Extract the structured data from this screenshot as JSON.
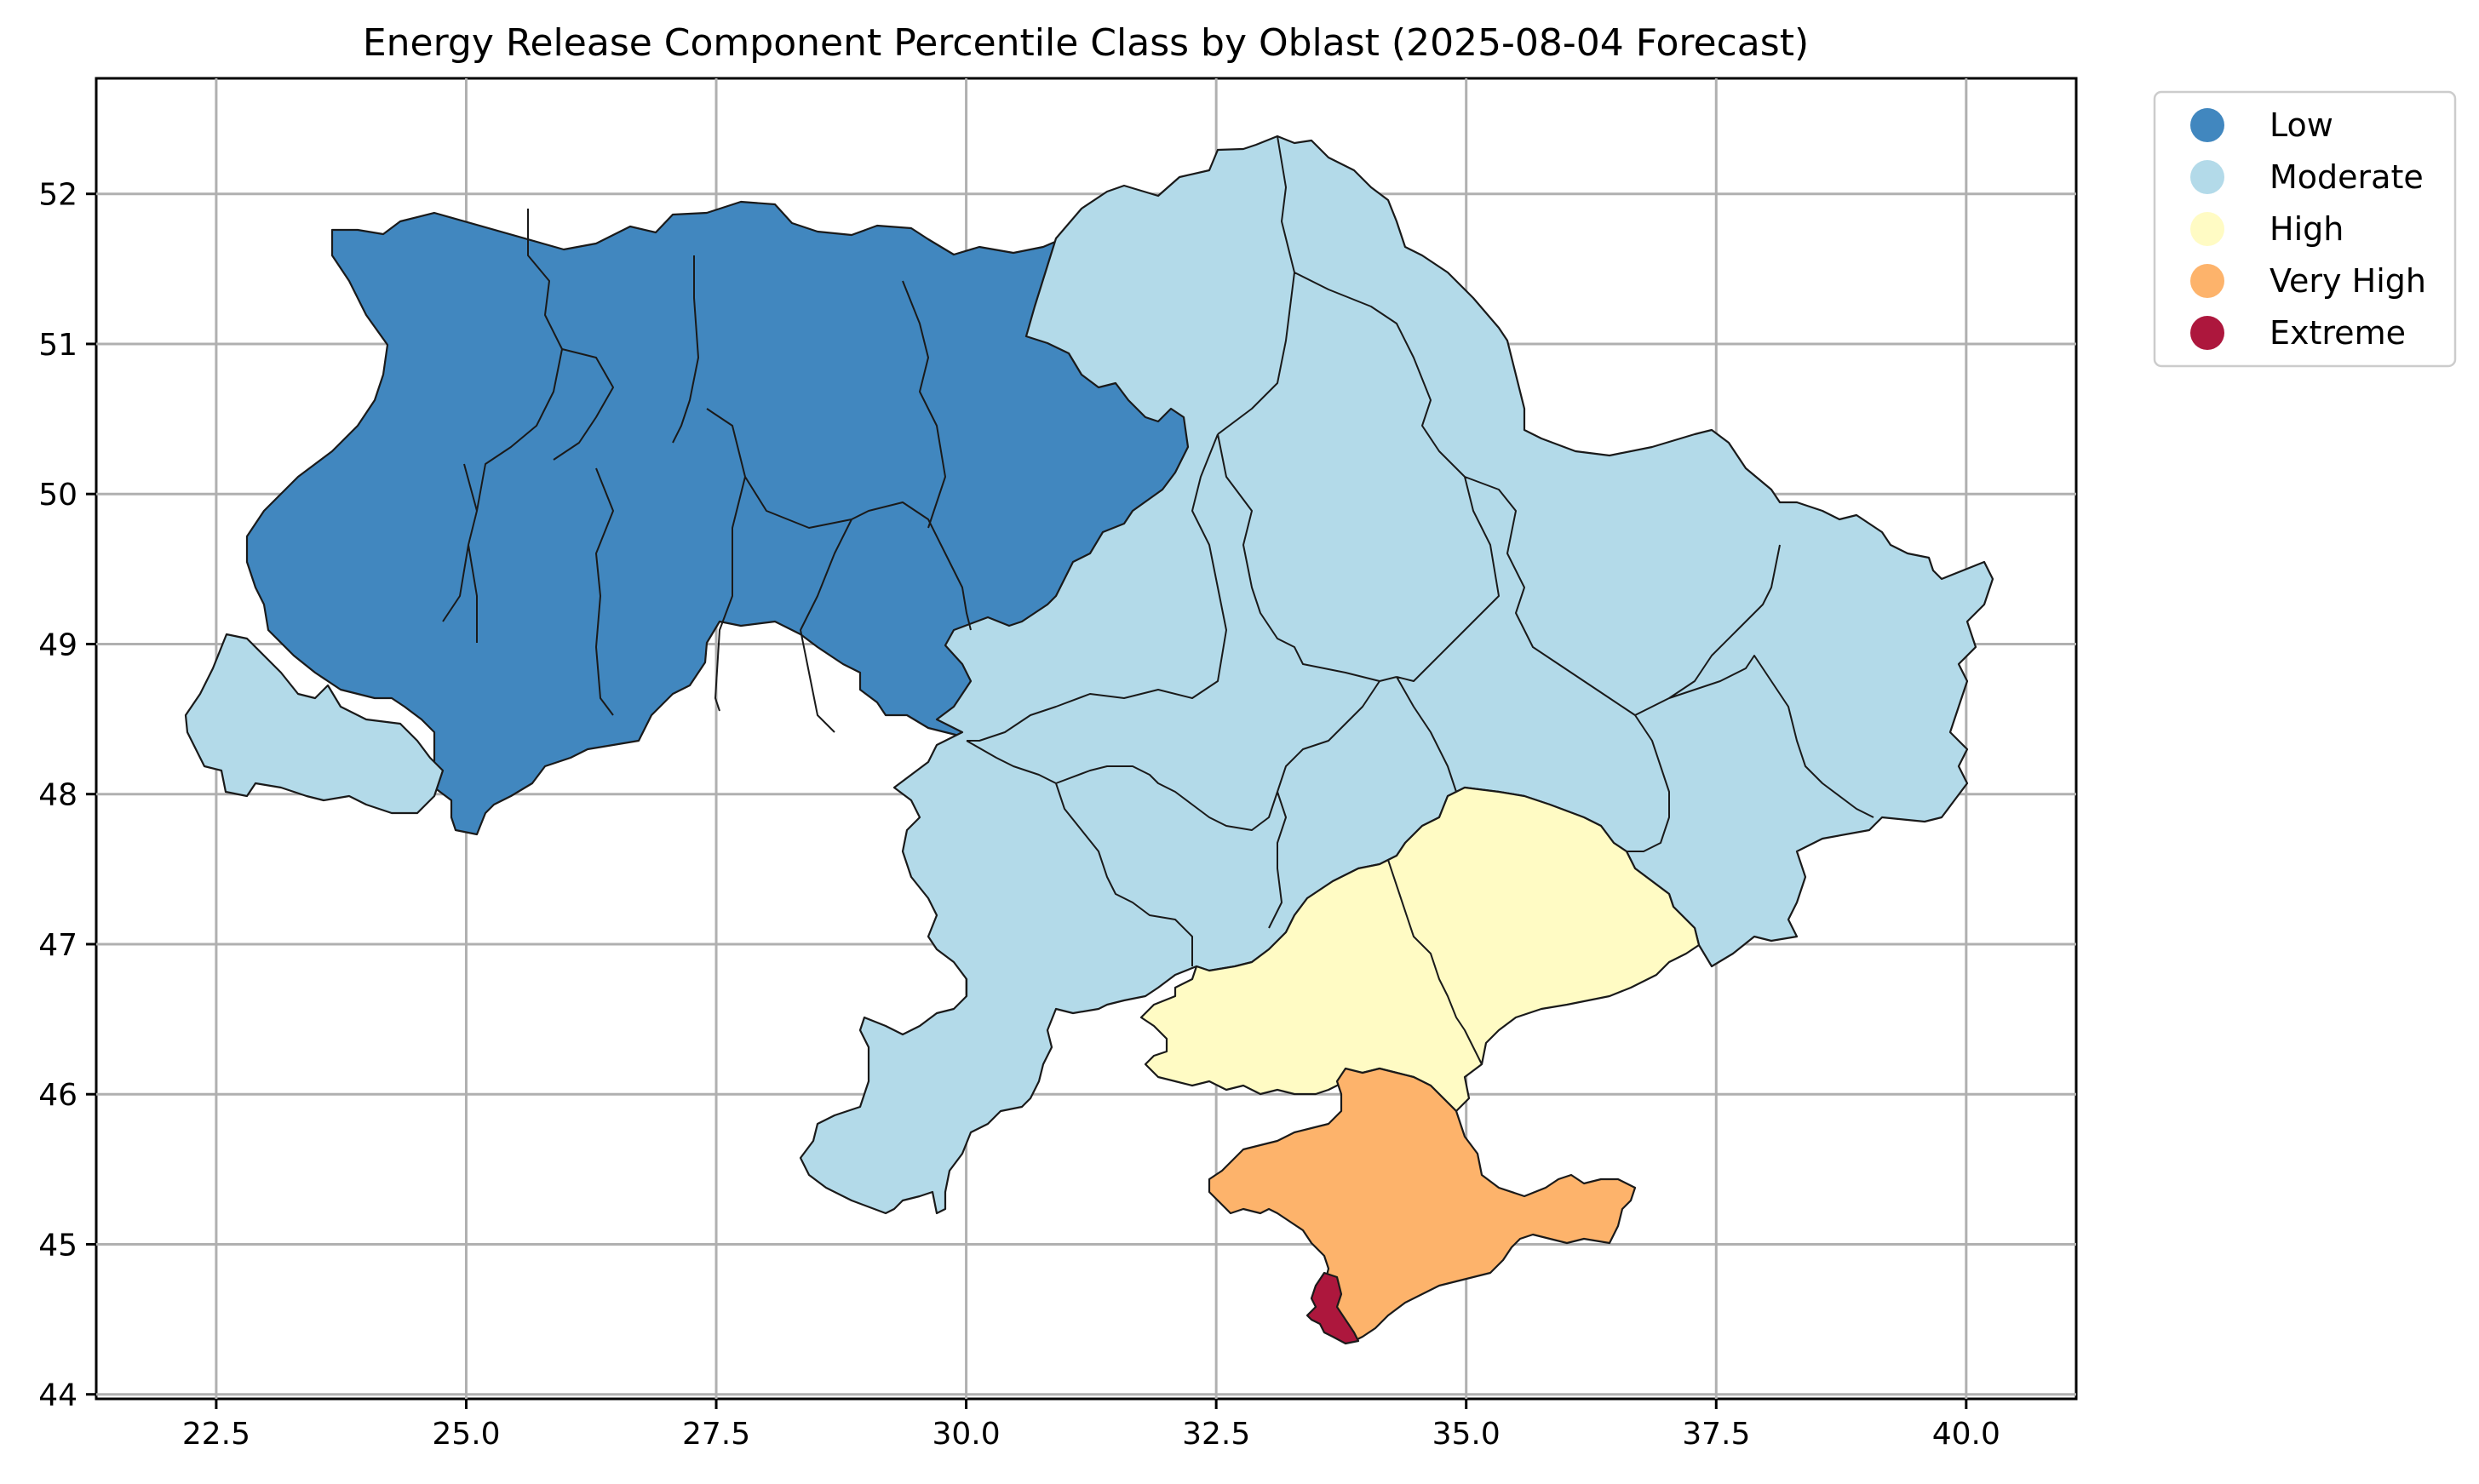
{
  "title": "Energy Release Component Percentile Class by Oblast (2025-08-04 Forecast)",
  "axes": {
    "x_ticks": [
      "22.5",
      "25.0",
      "27.5",
      "30.0",
      "32.5",
      "35.0",
      "37.5",
      "40.0"
    ],
    "y_ticks": [
      "44",
      "45",
      "46",
      "47",
      "48",
      "49",
      "50",
      "51",
      "52"
    ]
  },
  "legend": {
    "placement": "outside-top-right",
    "items": [
      {
        "label": "Low",
        "color": "#4187bf"
      },
      {
        "label": "Moderate",
        "color": "#b3dae9"
      },
      {
        "label": "High",
        "color": "#fffbc4"
      },
      {
        "label": "Very High",
        "color": "#fdb36b"
      },
      {
        "label": "Extreme",
        "color": "#ad173d"
      }
    ]
  },
  "chart_data": {
    "type": "choropleth",
    "x_range": [
      21.3,
      41.1
    ],
    "y_range": [
      43.97,
      52.77
    ],
    "grid": true,
    "classes": [
      "Low",
      "Moderate",
      "High",
      "Very High",
      "Extreme"
    ],
    "regions_by_class": {
      "Low": "northwest and west-central oblasts",
      "Moderate": "far west, north-east, east, centre and south-west oblasts",
      "High": "Zaporizhzhia and Kherson area",
      "Very High": "Crimea",
      "Extreme": "Sevastopol"
    }
  }
}
